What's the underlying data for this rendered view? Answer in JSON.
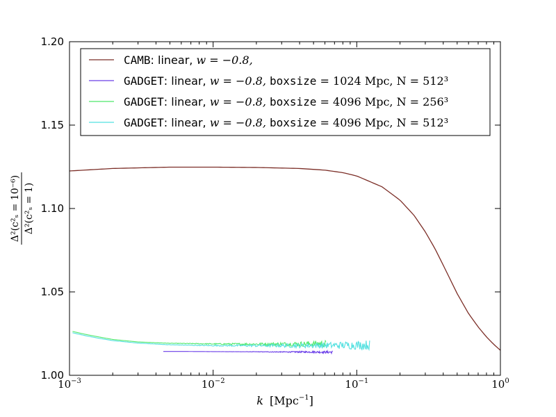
{
  "chart_data": {
    "type": "line",
    "title": "",
    "xlabel": {
      "var": "k",
      "unit": "[Mpc",
      "unit_exp": "−1",
      "unit_close": "]"
    },
    "ylabel": {
      "num": "Δ²(c²ₛ = 10⁻⁶)",
      "den": "Δ²(c²ₛ = 1)"
    },
    "xscale": "log",
    "xlim": [
      0.001,
      1.0
    ],
    "ylim": [
      1.0,
      1.2
    ],
    "xticks": [
      {
        "value": 0.001,
        "base": "10",
        "exp": "−3"
      },
      {
        "value": 0.01,
        "base": "10",
        "exp": "−2"
      },
      {
        "value": 0.1,
        "base": "10",
        "exp": "−1"
      },
      {
        "value": 1.0,
        "base": "10",
        "exp": "0"
      }
    ],
    "yticks": [
      "1.00",
      "1.05",
      "1.10",
      "1.15",
      "1.20"
    ],
    "grid": false,
    "legend_position": "top",
    "series": [
      {
        "name": {
          "code": "CAMB",
          "rest": ": linear, ",
          "math": "w = −0.8,"
        },
        "color": "#7b2d26",
        "kind": "smooth",
        "x": [
          0.001,
          0.002,
          0.005,
          0.01,
          0.02,
          0.04,
          0.06,
          0.08,
          0.1,
          0.15,
          0.2,
          0.25,
          0.3,
          0.35,
          0.4,
          0.5,
          0.6,
          0.7,
          0.8,
          0.9,
          1.0
        ],
        "y": [
          1.1225,
          1.124,
          1.1248,
          1.1248,
          1.1246,
          1.124,
          1.123,
          1.1215,
          1.1195,
          1.113,
          1.105,
          1.096,
          1.086,
          1.076,
          1.066,
          1.049,
          1.037,
          1.029,
          1.023,
          1.0185,
          1.015
        ]
      },
      {
        "name": {
          "code": "GADGET",
          "rest": ": linear, ",
          "math": "w = −0.8, ",
          "code2": "boxsize",
          "math2": " = 1024 Mpc, N = 512³"
        },
        "color": "#6a3de8",
        "kind": "noisy",
        "x": [
          0.0045,
          0.006,
          0.01,
          0.02,
          0.03,
          0.04,
          0.05,
          0.06,
          0.068
        ],
        "y": [
          1.0143,
          1.0143,
          1.0142,
          1.0141,
          1.014,
          1.014,
          1.014,
          1.0139,
          1.0139
        ],
        "noise": 0.0008
      },
      {
        "name": {
          "code": "GADGET",
          "rest": ": linear, ",
          "math": "w = −0.8, ",
          "code2": "boxsize",
          "math2": " = 4096 Mpc, N = 256³"
        },
        "color": "#4ee86a",
        "kind": "noisy",
        "x": [
          0.00105,
          0.0013,
          0.0016,
          0.002,
          0.003,
          0.005,
          0.01,
          0.02,
          0.04,
          0.061
        ],
        "y": [
          1.0263,
          1.0245,
          1.023,
          1.0215,
          1.02,
          1.0192,
          1.0188,
          1.0187,
          1.0188,
          1.019
        ],
        "noise": 0.002
      },
      {
        "name": {
          "code": "GADGET",
          "rest": ": linear, ",
          "math": "w = −0.8, ",
          "code2": "boxsize",
          "math2": " = 4096 Mpc, N = 512³"
        },
        "color": "#52e0e0",
        "kind": "noisy",
        "x": [
          0.00105,
          0.0013,
          0.0016,
          0.002,
          0.003,
          0.005,
          0.01,
          0.02,
          0.04,
          0.08,
          0.123
        ],
        "y": [
          1.0255,
          1.0237,
          1.0222,
          1.0208,
          1.0193,
          1.0183,
          1.0178,
          1.0178,
          1.0178,
          1.018,
          1.0182
        ],
        "noise": 0.003
      }
    ]
  }
}
